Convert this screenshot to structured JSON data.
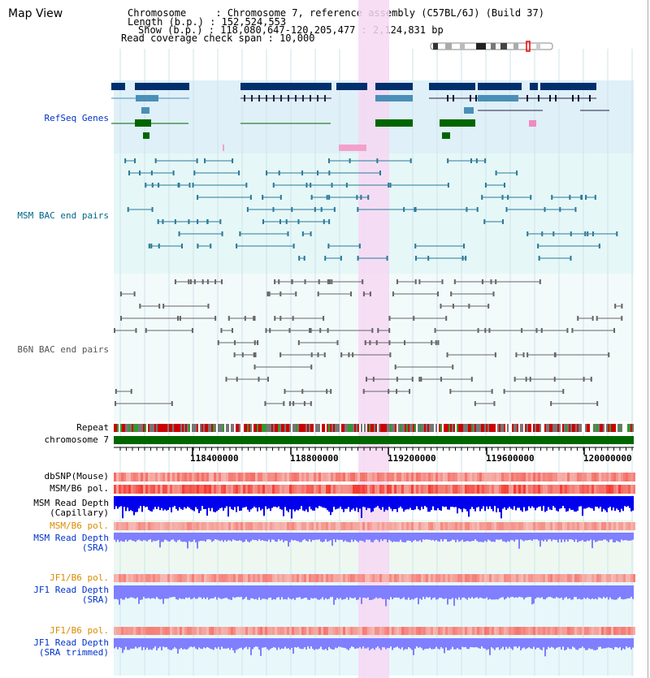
{
  "panel_title": "Map View",
  "info": {
    "line1": "Chromosome     : Chromosome 7, reference assembly (C57BL/6J) (Build 37)",
    "line2": "Length (b.p.) : 152,524,553",
    "line3": "Show (b.p.) : 118,080,647-120,205,477 : 2,124,831 bp",
    "line4": "Read coverage check span : 10,000"
  },
  "tracks": {
    "refseq": "RefSeq Genes",
    "msm_bac": "MSM BAC end pairs",
    "b6n_bac": "B6N BAC end pairs",
    "repeat": "Repeat",
    "chrom": "chromosome 7",
    "dbsnp": "dbSNP(Mouse)",
    "msm_pol1": "MSM/B6 pol.",
    "msm_depth_cap_1": "MSM Read Depth",
    "msm_depth_cap_2": "(Capillary)",
    "msm_pol2": "MSM/B6 pol.",
    "msm_depth_sra_1": "MSM Read Depth",
    "msm_depth_sra_2": "(SRA)",
    "jf1_pol1": "JF1/B6 pol.",
    "jf1_depth_1": "JF1 Read Depth",
    "jf1_depth_2": "(SRA)",
    "jf1_pol2": "JF1/B6 pol.",
    "jf1_trim_1": "JF1 Read Depth",
    "jf1_trim_2": "(SRA trimmed)"
  },
  "axis_ticks": [
    "118400000",
    "118800000",
    "119200000",
    "119600000",
    "120000000"
  ],
  "colors": {
    "refseq_bg": "#dff0f8",
    "msm_bg": "#e6f7f7",
    "b6n_bg": "#f3fafa",
    "highlight": "#f6d8f3",
    "gene_dark": "#002f6c",
    "gene_mid": "#4a8fb8",
    "gene_green": "#006600",
    "chrom_green": "#006600",
    "depth_blue": "#0000ee",
    "depth_light": "#7f7fff"
  }
}
